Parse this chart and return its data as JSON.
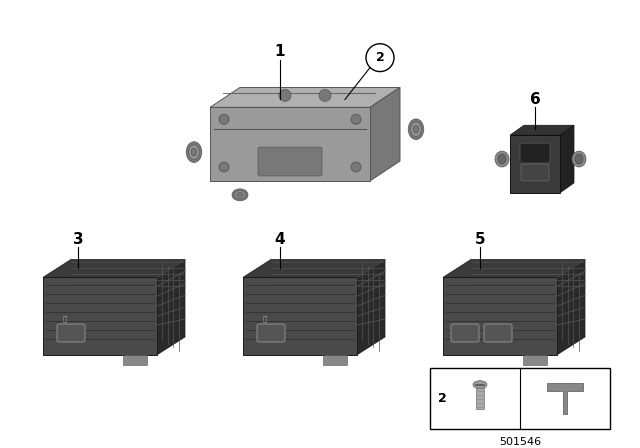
{
  "background_color": "#ffffff",
  "part_number": "501546",
  "hub_color_top": "#b0b0b0",
  "hub_color_front": "#9a9a9a",
  "hub_color_side": "#787878",
  "hub_color_edge": "#555555",
  "usb_color_front": "#4a4a4a",
  "usb_color_top": "#3a3a3a",
  "usb_color_side": "#2a2a2a",
  "usb_color_edge": "#1a1a1a",
  "usb_port_color": "#888888",
  "usb_port_inner": "#555555",
  "label_fontsize": 11,
  "circle_label_fontsize": 9
}
